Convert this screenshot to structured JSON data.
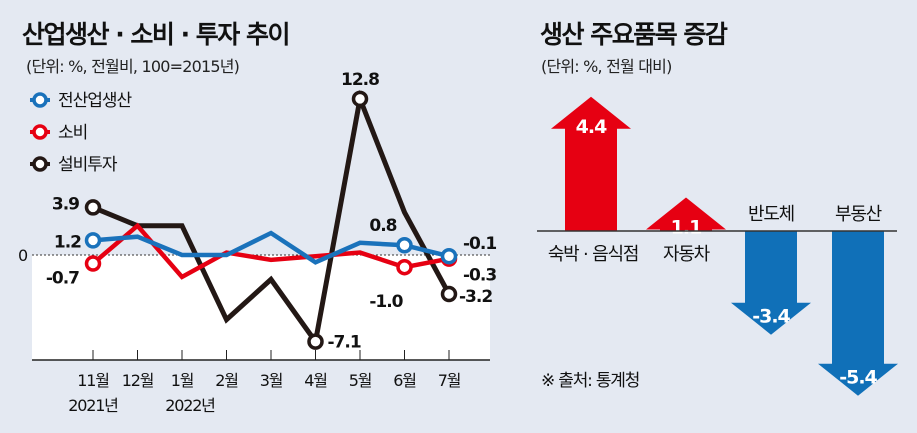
{
  "chart_data": [
    {
      "type": "line",
      "title": "산업생산 · 소비 · 투자 추이",
      "subtitle": "(단위: %, 전월비, 100=2015년)",
      "categories": [
        "11월",
        "12월",
        "1월",
        "2월",
        "3월",
        "4월",
        "5월",
        "6월",
        "7월"
      ],
      "year_labels": [
        "2021년",
        "",
        "2022년",
        "",
        "",
        "",
        "",
        "",
        ""
      ],
      "zero_label": "0",
      "ylim": [
        -8.5,
        14
      ],
      "series": [
        {
          "name": "전산업생산",
          "color": "#1a72bb",
          "values": [
            1.2,
            1.5,
            0.0,
            0.0,
            1.8,
            -0.6,
            1.0,
            0.8,
            -0.1
          ],
          "labels": [
            "1.2",
            "",
            "",
            "",
            "",
            "",
            "",
            "0.8",
            "-0.1"
          ]
        },
        {
          "name": "소비",
          "color": "#e60012",
          "values": [
            -0.7,
            2.4,
            -1.8,
            0.2,
            -0.4,
            -0.1,
            0.2,
            -1.0,
            -0.3
          ],
          "labels": [
            "-0.7",
            "",
            "",
            "",
            "",
            "",
            "",
            "-1.0",
            "-0.3"
          ]
        },
        {
          "name": "설비투자",
          "color": "#231815",
          "values": [
            3.9,
            2.4,
            2.4,
            -5.3,
            -2.0,
            -7.1,
            12.8,
            3.5,
            -3.2
          ],
          "labels": [
            "3.9",
            "",
            "",
            "",
            "",
            "-7.1",
            "12.8",
            "",
            "-3.2"
          ]
        }
      ]
    },
    {
      "type": "bar",
      "title": "생산 주요품목 증감",
      "subtitle": "(단위: %, 전월 대비)",
      "categories": [
        "숙박 · 음식점",
        "자동차",
        "반도체",
        "부동산"
      ],
      "values": [
        4.4,
        1.1,
        -3.4,
        -5.4
      ],
      "value_labels": [
        "4.4",
        "1.1",
        "-3.4",
        "-5.4"
      ],
      "colors": {
        "positive": "#e60012",
        "negative": "#1070b8"
      },
      "source": "※ 출처: 통계청"
    }
  ]
}
